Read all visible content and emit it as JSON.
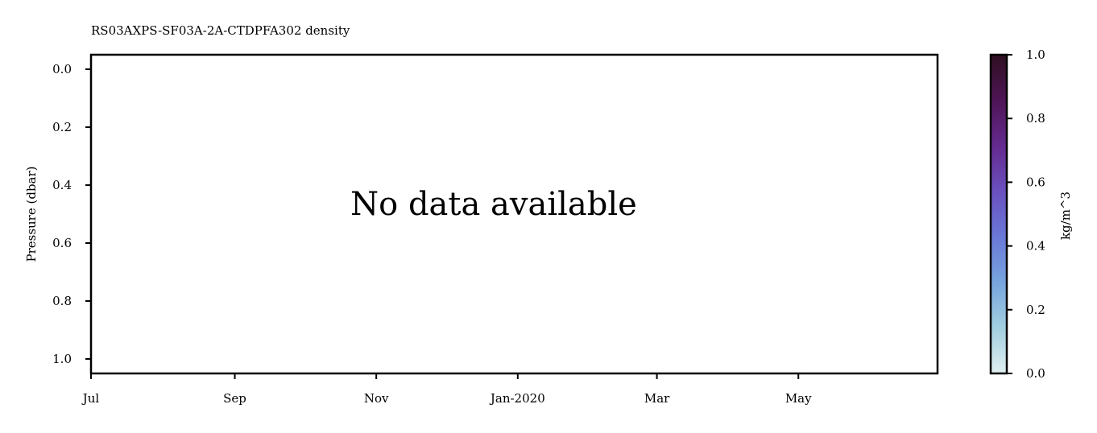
{
  "chart_data": {
    "type": "heatmap",
    "title": "RS03AXPS-SF03A-2A-CTDPFA302 density",
    "xlabel": "",
    "ylabel": "Pressure (dbar)",
    "message": "No data available",
    "x_ticks": [
      "Jul",
      "Sep",
      "Nov",
      "Jan-2020",
      "Mar",
      "May"
    ],
    "xlim": [
      "2019-07-01",
      "2020-06-30"
    ],
    "y_ticks": [
      "0.0",
      "0.2",
      "0.4",
      "0.6",
      "0.8",
      "1.0"
    ],
    "ylim": [
      1.05,
      -0.05
    ],
    "y_inverted": true,
    "grid": false,
    "series": [],
    "colorbar": {
      "label": "kg/m^3",
      "ticks": [
        "0.0",
        "0.2",
        "0.4",
        "0.6",
        "0.8",
        "1.0"
      ],
      "range": [
        0.0,
        1.0
      ],
      "colors": [
        "#e0eff0",
        "#a2cfe0",
        "#77a5de",
        "#6a78d8",
        "#6a50bf",
        "#642a8e",
        "#4e1556",
        "#2f0f21"
      ]
    }
  }
}
